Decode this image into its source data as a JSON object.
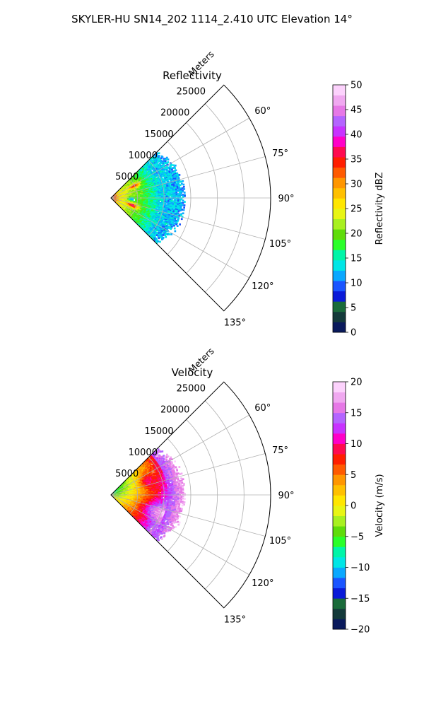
{
  "suptitle": "SKYLER-HU  SN14_202  1114_2.410 UTC Elevation 14°",
  "chart_data": [
    {
      "type": "heatmap",
      "projection": "polar-sector",
      "title": "Reflectivity",
      "radial_label": "Meters",
      "radial_ticks": [
        5000,
        10000,
        15000,
        20000,
        25000
      ],
      "radial_tick_labels": [
        "5000",
        "10000",
        "15000",
        "20000",
        "25000"
      ],
      "rmax": 30000,
      "azimuth_range_deg": [
        45,
        135
      ],
      "azimuth_ticks": [
        60,
        75,
        90,
        105,
        120,
        135
      ],
      "azimuth_tick_labels": [
        "60°",
        "75°",
        "90°",
        "105°",
        "120°",
        "135°"
      ],
      "grid": true,
      "data_extent_m": 13000,
      "colorbar": {
        "label": "Reflectivity dBZ",
        "min": 0,
        "max": 50,
        "ticks": [
          0,
          5,
          10,
          15,
          20,
          25,
          30,
          35,
          40,
          45,
          50
        ],
        "tick_labels": [
          "0",
          "5",
          "10",
          "15",
          "20",
          "25",
          "30",
          "35",
          "40",
          "45",
          "50"
        ],
        "colors": [
          "#0a1a5c",
          "#143a3a",
          "#1a6b3a",
          "#0a1ad8",
          "#1a55ff",
          "#0aa8ff",
          "#00e6e6",
          "#00f5a8",
          "#2aff2a",
          "#5fdc0a",
          "#a8f020",
          "#e8f514",
          "#ffe600",
          "#ffc000",
          "#ff9600",
          "#ff5a00",
          "#ff1e00",
          "#ff0a50",
          "#ff00c8",
          "#c832ff",
          "#b464ff",
          "#e678e6",
          "#f0a8f0",
          "#fcd2fc"
        ]
      }
    },
    {
      "type": "heatmap",
      "projection": "polar-sector",
      "title": "Velocity",
      "radial_label": "Meters",
      "radial_ticks": [
        5000,
        10000,
        15000,
        20000,
        25000
      ],
      "radial_tick_labels": [
        "5000",
        "10000",
        "15000",
        "20000",
        "25000"
      ],
      "rmax": 30000,
      "azimuth_range_deg": [
        45,
        135
      ],
      "azimuth_ticks": [
        60,
        75,
        90,
        105,
        120,
        135
      ],
      "azimuth_tick_labels": [
        "60°",
        "75°",
        "90°",
        "105°",
        "120°",
        "135°"
      ],
      "grid": true,
      "data_extent_m": 13000,
      "colorbar": {
        "label": "Velocity (m/s)",
        "min": -20,
        "max": 20,
        "ticks": [
          -20,
          -15,
          -10,
          -5,
          0,
          5,
          10,
          15,
          20
        ],
        "tick_labels": [
          "−20",
          "−15",
          "−10",
          "−5",
          "0",
          "5",
          "10",
          "15",
          "20"
        ],
        "colors": [
          "#0a1a5c",
          "#143a3a",
          "#1a6b3a",
          "#0a1ad8",
          "#1a55ff",
          "#0aa8ff",
          "#00e6e6",
          "#00f5a8",
          "#2aff2a",
          "#5fdc0a",
          "#a8f020",
          "#e8f514",
          "#ffe600",
          "#ffc000",
          "#ff9600",
          "#ff5a00",
          "#ff1e00",
          "#ff0a50",
          "#ff00c8",
          "#c832ff",
          "#b464ff",
          "#e678e6",
          "#f0a8f0",
          "#fcd2fc"
        ]
      }
    }
  ]
}
